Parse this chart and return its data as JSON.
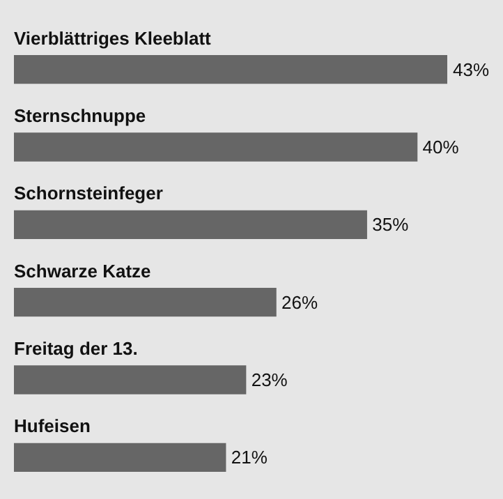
{
  "chart_data": {
    "type": "bar",
    "orientation": "horizontal",
    "categories": [
      "Vierblättriges Kleeblatt",
      "Sternschnuppe",
      "Schornsteinfeger",
      "Schwarze Katze",
      "Freitag der 13.",
      "Hufeisen"
    ],
    "values": [
      43,
      40,
      35,
      26,
      23,
      21
    ],
    "value_labels": [
      "43%",
      "40%",
      "35%",
      "26%",
      "23%",
      "21%"
    ],
    "color": "#666666"
  }
}
